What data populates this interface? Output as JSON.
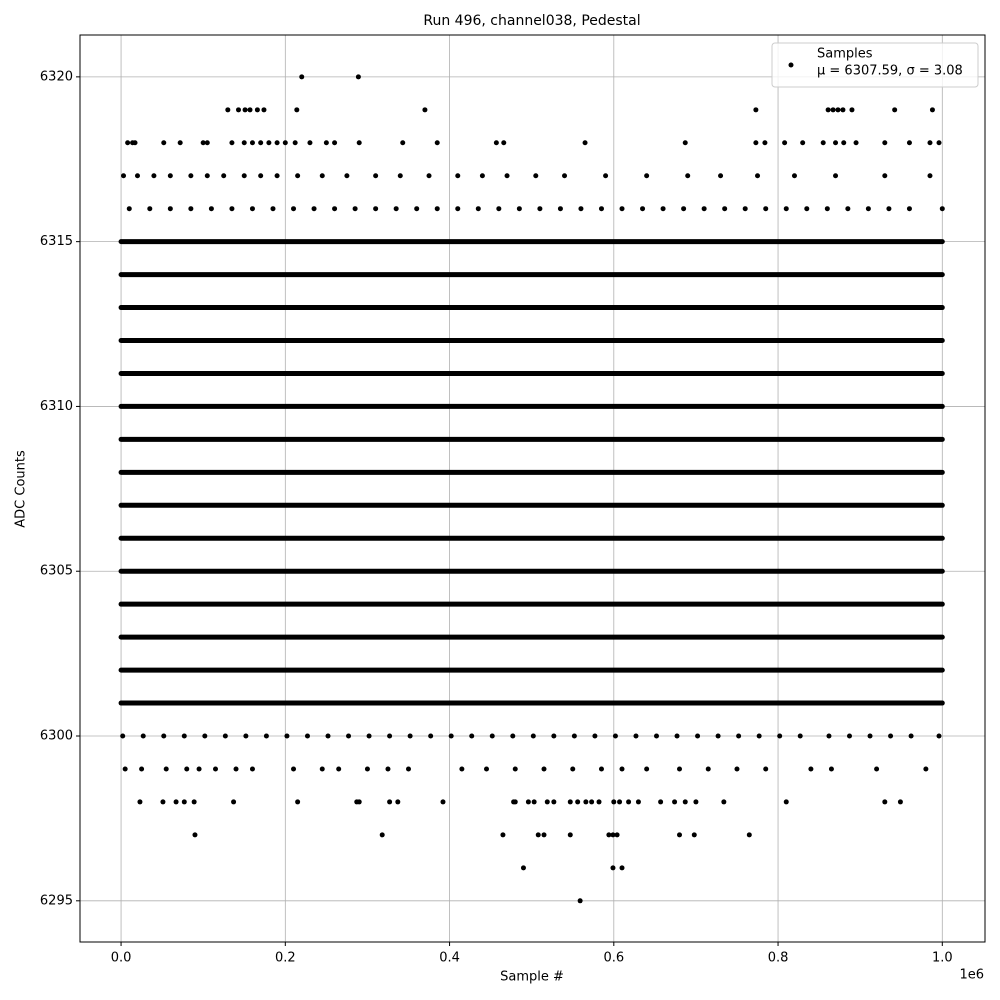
{
  "chart_data": {
    "type": "scatter",
    "title": "Run 496, channel038, Pedestal",
    "xlabel": "Sample #",
    "ylabel": "ADC Counts",
    "x_offset_label": "1e6",
    "xlim": [
      -50000,
      1052000
    ],
    "ylim": [
      6293.75,
      6321.27
    ],
    "xticks": [
      {
        "value": 0,
        "label": "0.0"
      },
      {
        "value": 200000,
        "label": "0.2"
      },
      {
        "value": 400000,
        "label": "0.4"
      },
      {
        "value": 600000,
        "label": "0.6"
      },
      {
        "value": 800000,
        "label": "0.8"
      },
      {
        "value": 1000000,
        "label": "1.0"
      }
    ],
    "yticks": [
      6295,
      6300,
      6305,
      6310,
      6315,
      6320
    ],
    "grid": true,
    "legend": "upper right",
    "series": [
      {
        "name": "Samples",
        "stats_label": "μ = 6307.59, σ = 3.08",
        "color": "#000000",
        "dense_values": [
          6301,
          6302,
          6303,
          6304,
          6305,
          6306,
          6307,
          6308,
          6309,
          6310,
          6311,
          6312,
          6313,
          6314,
          6315
        ],
        "dense_x": [
          0,
          1000000
        ],
        "x": [
          220000,
          289000,
          130000,
          143000,
          151000,
          157000,
          166000,
          174000,
          214000,
          370000,
          773000,
          861000,
          867000,
          873000,
          879000,
          890000,
          942000,
          988000,
          8000,
          14000,
          17000,
          52000,
          72000,
          100000,
          105000,
          135000,
          150000,
          160000,
          170000,
          180000,
          190000,
          200000,
          212000,
          230000,
          250000,
          260000,
          290000,
          343000,
          385000,
          457000,
          466000,
          565000,
          687000,
          773000,
          784000,
          808000,
          830000,
          855000,
          870000,
          880000,
          895000,
          930000,
          960000,
          985000,
          996000,
          3000,
          20000,
          40000,
          60000,
          85000,
          105000,
          125000,
          150000,
          170000,
          190000,
          215000,
          245000,
          275000,
          310000,
          340000,
          375000,
          410000,
          440000,
          470000,
          505000,
          540000,
          590000,
          640000,
          690000,
          730000,
          775000,
          820000,
          870000,
          930000,
          985000,
          10000,
          35000,
          60000,
          85000,
          110000,
          135000,
          160000,
          185000,
          210000,
          235000,
          260000,
          285000,
          310000,
          335000,
          360000,
          385000,
          410000,
          435000,
          460000,
          485000,
          510000,
          535000,
          560000,
          585000,
          610000,
          635000,
          660000,
          685000,
          710000,
          735000,
          760000,
          785000,
          810000,
          835000,
          860000,
          885000,
          910000,
          935000,
          960000,
          1000000,
          2000,
          27000,
          52000,
          77000,
          102000,
          127000,
          152000,
          177000,
          202000,
          227000,
          252000,
          277000,
          302000,
          327000,
          352000,
          377000,
          402000,
          427000,
          452000,
          477000,
          502000,
          527000,
          552000,
          577000,
          602000,
          627000,
          652000,
          677000,
          702000,
          727000,
          752000,
          777000,
          802000,
          827000,
          862000,
          887000,
          912000,
          937000,
          962000,
          996000,
          5000,
          25000,
          55000,
          80000,
          95000,
          115000,
          140000,
          160000,
          210000,
          245000,
          265000,
          300000,
          325000,
          350000,
          415000,
          445000,
          480000,
          515000,
          550000,
          585000,
          610000,
          640000,
          680000,
          715000,
          750000,
          785000,
          840000,
          865000,
          920000,
          980000,
          23000,
          51000,
          67000,
          77000,
          89000,
          137000,
          215000,
          287000,
          290000,
          327000,
          337000,
          392000,
          478000,
          480000,
          496000,
          503000,
          519000,
          527000,
          547000,
          556000,
          566000,
          573000,
          582000,
          600000,
          607000,
          618000,
          630000,
          657000,
          674000,
          687000,
          700000,
          734000,
          810000,
          930000,
          949000,
          90000,
          318000,
          465000,
          508000,
          515000,
          547000,
          594000,
          599000,
          604000,
          680000,
          698000,
          765000,
          490000,
          599000,
          610000,
          559000
        ],
        "values": [
          6320,
          6320,
          6319,
          6319,
          6319,
          6319,
          6319,
          6319,
          6319,
          6319,
          6319,
          6319,
          6319,
          6319,
          6319,
          6319,
          6319,
          6319,
          6318,
          6318,
          6318,
          6318,
          6318,
          6318,
          6318,
          6318,
          6318,
          6318,
          6318,
          6318,
          6318,
          6318,
          6318,
          6318,
          6318,
          6318,
          6318,
          6318,
          6318,
          6318,
          6318,
          6318,
          6318,
          6318,
          6318,
          6318,
          6318,
          6318,
          6318,
          6318,
          6318,
          6318,
          6318,
          6318,
          6318,
          6317,
          6317,
          6317,
          6317,
          6317,
          6317,
          6317,
          6317,
          6317,
          6317,
          6317,
          6317,
          6317,
          6317,
          6317,
          6317,
          6317,
          6317,
          6317,
          6317,
          6317,
          6317,
          6317,
          6317,
          6317,
          6317,
          6317,
          6317,
          6317,
          6317,
          6316,
          6316,
          6316,
          6316,
          6316,
          6316,
          6316,
          6316,
          6316,
          6316,
          6316,
          6316,
          6316,
          6316,
          6316,
          6316,
          6316,
          6316,
          6316,
          6316,
          6316,
          6316,
          6316,
          6316,
          6316,
          6316,
          6316,
          6316,
          6316,
          6316,
          6316,
          6316,
          6316,
          6316,
          6316,
          6316,
          6316,
          6316,
          6316,
          6316,
          6300,
          6300,
          6300,
          6300,
          6300,
          6300,
          6300,
          6300,
          6300,
          6300,
          6300,
          6300,
          6300,
          6300,
          6300,
          6300,
          6300,
          6300,
          6300,
          6300,
          6300,
          6300,
          6300,
          6300,
          6300,
          6300,
          6300,
          6300,
          6300,
          6300,
          6300,
          6300,
          6300,
          6300,
          6300,
          6300,
          6300,
          6300,
          6300,
          6300,
          6299,
          6299,
          6299,
          6299,
          6299,
          6299,
          6299,
          6299,
          6299,
          6299,
          6299,
          6299,
          6299,
          6299,
          6299,
          6299,
          6299,
          6299,
          6299,
          6299,
          6299,
          6299,
          6299,
          6299,
          6299,
          6299,
          6299,
          6299,
          6299,
          6299,
          6298,
          6298,
          6298,
          6298,
          6298,
          6298,
          6298,
          6298,
          6298,
          6298,
          6298,
          6298,
          6298,
          6298,
          6298,
          6298,
          6298,
          6298,
          6298,
          6298,
          6298,
          6298,
          6298,
          6298,
          6298,
          6298,
          6298,
          6298,
          6298,
          6298,
          6298,
          6298,
          6298,
          6298,
          6298,
          6297,
          6297,
          6297,
          6297,
          6297,
          6297,
          6297,
          6297,
          6297,
          6297,
          6297,
          6297,
          6296,
          6296,
          6296,
          6295
        ]
      }
    ]
  }
}
